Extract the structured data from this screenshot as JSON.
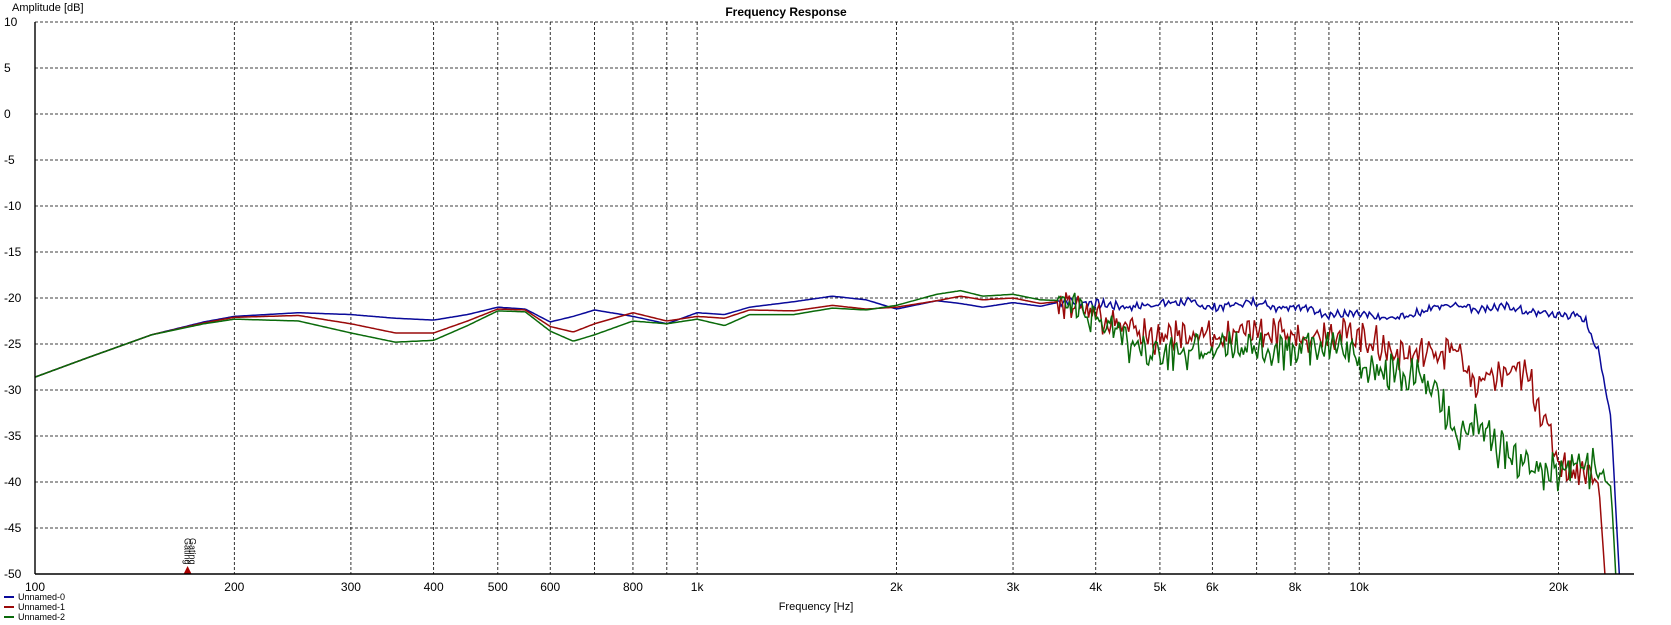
{
  "chart_data": {
    "type": "line",
    "title": "Frequency Response",
    "xlabel": "Frequency [Hz]",
    "ylabel": "Amplitude [dB]",
    "x_scale": "log",
    "xlim": [
      100,
      26000
    ],
    "ylim": [
      -50,
      10
    ],
    "grid": true,
    "legend_position": "bottom-left",
    "y_ticks": [
      "10",
      "5",
      "0",
      "-5",
      "-10",
      "-15",
      "-20",
      "-25",
      "-30",
      "-35",
      "-40",
      "-45",
      "-50"
    ],
    "x_ticks": [
      {
        "value": 100,
        "label": "100"
      },
      {
        "value": 200,
        "label": "200"
      },
      {
        "value": 300,
        "label": "300"
      },
      {
        "value": 400,
        "label": "400"
      },
      {
        "value": 500,
        "label": "500"
      },
      {
        "value": 600,
        "label": "600"
      },
      {
        "value": 800,
        "label": "800"
      },
      {
        "value": 1000,
        "label": "1k"
      },
      {
        "value": 2000,
        "label": "2k"
      },
      {
        "value": 3000,
        "label": "3k"
      },
      {
        "value": 4000,
        "label": "4k"
      },
      {
        "value": 5000,
        "label": "5k"
      },
      {
        "value": 6000,
        "label": "6k"
      },
      {
        "value": 8000,
        "label": "8k"
      },
      {
        "value": 10000,
        "label": "10k"
      },
      {
        "value": 20000,
        "label": "20k"
      }
    ],
    "minor_x_grid": [
      700,
      900,
      7000,
      9000
    ],
    "marker": {
      "x": 170,
      "labels": [
        "Gating",
        "Gating"
      ],
      "colors": [
        "#0000aa",
        "#aa0000"
      ]
    },
    "series": [
      {
        "name": "Unnamed-0",
        "color": "#0a0a9a",
        "points": [
          [
            100,
            -28.6
          ],
          [
            120,
            -26.5
          ],
          [
            150,
            -24.0
          ],
          [
            180,
            -22.6
          ],
          [
            200,
            -22.0
          ],
          [
            250,
            -21.6
          ],
          [
            300,
            -21.8
          ],
          [
            350,
            -22.2
          ],
          [
            400,
            -22.4
          ],
          [
            450,
            -21.8
          ],
          [
            500,
            -21.0
          ],
          [
            550,
            -21.2
          ],
          [
            600,
            -22.6
          ],
          [
            650,
            -22.0
          ],
          [
            700,
            -21.3
          ],
          [
            800,
            -22.0
          ],
          [
            900,
            -22.8
          ],
          [
            1000,
            -21.6
          ],
          [
            1100,
            -21.8
          ],
          [
            1200,
            -21.0
          ],
          [
            1400,
            -20.4
          ],
          [
            1600,
            -19.8
          ],
          [
            1800,
            -20.2
          ],
          [
            2000,
            -21.2
          ],
          [
            2300,
            -20.3
          ],
          [
            2500,
            -20.6
          ],
          [
            2700,
            -21.0
          ],
          [
            3000,
            -20.5
          ],
          [
            3300,
            -20.9
          ],
          [
            3600,
            -20.3
          ],
          [
            4000,
            -20.6
          ],
          [
            4500,
            -21.0
          ],
          [
            5000,
            -20.6
          ],
          [
            5500,
            -20.4
          ],
          [
            6000,
            -21.1
          ],
          [
            6500,
            -20.7
          ],
          [
            7000,
            -20.4
          ],
          [
            7500,
            -21.0
          ],
          [
            8000,
            -20.8
          ],
          [
            9000,
            -21.8
          ],
          [
            10000,
            -21.8
          ],
          [
            11000,
            -22.3
          ],
          [
            12000,
            -21.8
          ],
          [
            13000,
            -21.0
          ],
          [
            14000,
            -20.6
          ],
          [
            15000,
            -21.2
          ],
          [
            16000,
            -21.0
          ],
          [
            17000,
            -21.0
          ],
          [
            18000,
            -21.6
          ],
          [
            19000,
            -21.6
          ],
          [
            20000,
            -21.9
          ],
          [
            21000,
            -21.8
          ],
          [
            22000,
            -22.5
          ],
          [
            23000,
            -26.0
          ],
          [
            24000,
            -33.0
          ],
          [
            24700,
            -50.0
          ]
        ]
      },
      {
        "name": "Unnamed-1",
        "color": "#9a0a0a",
        "points": [
          [
            100,
            -28.6
          ],
          [
            120,
            -26.5
          ],
          [
            150,
            -24.0
          ],
          [
            180,
            -22.7
          ],
          [
            200,
            -22.1
          ],
          [
            250,
            -21.9
          ],
          [
            300,
            -22.8
          ],
          [
            350,
            -23.8
          ],
          [
            400,
            -23.8
          ],
          [
            450,
            -22.5
          ],
          [
            500,
            -21.2
          ],
          [
            550,
            -21.3
          ],
          [
            600,
            -23.1
          ],
          [
            650,
            -23.7
          ],
          [
            700,
            -22.8
          ],
          [
            800,
            -21.6
          ],
          [
            900,
            -22.5
          ],
          [
            1000,
            -22.0
          ],
          [
            1100,
            -22.2
          ],
          [
            1200,
            -21.3
          ],
          [
            1400,
            -21.4
          ],
          [
            1600,
            -20.8
          ],
          [
            1800,
            -21.2
          ],
          [
            2000,
            -21.0
          ],
          [
            2300,
            -20.3
          ],
          [
            2500,
            -19.8
          ],
          [
            2700,
            -20.2
          ],
          [
            3000,
            -20.0
          ],
          [
            3300,
            -20.6
          ],
          [
            3600,
            -20.3
          ],
          [
            4000,
            -21.5
          ],
          [
            4500,
            -23.5
          ],
          [
            5000,
            -24.5
          ],
          [
            5500,
            -23.8
          ],
          [
            6000,
            -24.6
          ],
          [
            6500,
            -24.0
          ],
          [
            7000,
            -23.4
          ],
          [
            7500,
            -24.2
          ],
          [
            8000,
            -24.2
          ],
          [
            9000,
            -23.6
          ],
          [
            10000,
            -24.0
          ],
          [
            11000,
            -25.6
          ],
          [
            12000,
            -26.3
          ],
          [
            13000,
            -25.8
          ],
          [
            14000,
            -25.6
          ],
          [
            15000,
            -29.6
          ],
          [
            16000,
            -28.6
          ],
          [
            17000,
            -28.0
          ],
          [
            18000,
            -28.6
          ],
          [
            19000,
            -33.0
          ],
          [
            20000,
            -37.6
          ],
          [
            21000,
            -38.8
          ],
          [
            22000,
            -38.6
          ],
          [
            23000,
            -40.2
          ],
          [
            23500,
            -50.0
          ]
        ]
      },
      {
        "name": "Unnamed-2",
        "color": "#0a6a0a",
        "points": [
          [
            100,
            -28.6
          ],
          [
            120,
            -26.5
          ],
          [
            150,
            -24.0
          ],
          [
            180,
            -22.8
          ],
          [
            200,
            -22.3
          ],
          [
            250,
            -22.5
          ],
          [
            300,
            -23.8
          ],
          [
            350,
            -24.8
          ],
          [
            400,
            -24.6
          ],
          [
            450,
            -23.0
          ],
          [
            500,
            -21.4
          ],
          [
            550,
            -21.5
          ],
          [
            600,
            -23.6
          ],
          [
            650,
            -24.7
          ],
          [
            700,
            -24.0
          ],
          [
            800,
            -22.5
          ],
          [
            900,
            -22.8
          ],
          [
            1000,
            -22.3
          ],
          [
            1100,
            -23.0
          ],
          [
            1200,
            -21.8
          ],
          [
            1400,
            -21.8
          ],
          [
            1600,
            -21.1
          ],
          [
            1800,
            -21.3
          ],
          [
            2000,
            -20.8
          ],
          [
            2300,
            -19.6
          ],
          [
            2500,
            -19.2
          ],
          [
            2700,
            -19.8
          ],
          [
            3000,
            -19.6
          ],
          [
            3300,
            -20.2
          ],
          [
            3600,
            -20.3
          ],
          [
            4000,
            -22.3
          ],
          [
            4500,
            -25.0
          ],
          [
            5000,
            -26.0
          ],
          [
            5500,
            -25.4
          ],
          [
            6000,
            -26.2
          ],
          [
            6500,
            -25.5
          ],
          [
            7000,
            -25.2
          ],
          [
            7500,
            -25.6
          ],
          [
            8000,
            -25.2
          ],
          [
            9000,
            -24.8
          ],
          [
            10000,
            -26.8
          ],
          [
            11000,
            -28.2
          ],
          [
            12000,
            -28.0
          ],
          [
            13000,
            -30.2
          ],
          [
            14000,
            -34.6
          ],
          [
            15000,
            -33.5
          ],
          [
            16000,
            -35.8
          ],
          [
            17000,
            -37.0
          ],
          [
            18000,
            -38.4
          ],
          [
            19000,
            -38.6
          ],
          [
            20000,
            -39.0
          ],
          [
            21000,
            -38.0
          ],
          [
            22000,
            -38.2
          ],
          [
            23000,
            -39.2
          ],
          [
            24000,
            -40.5
          ],
          [
            24400,
            -50.0
          ]
        ]
      }
    ]
  }
}
